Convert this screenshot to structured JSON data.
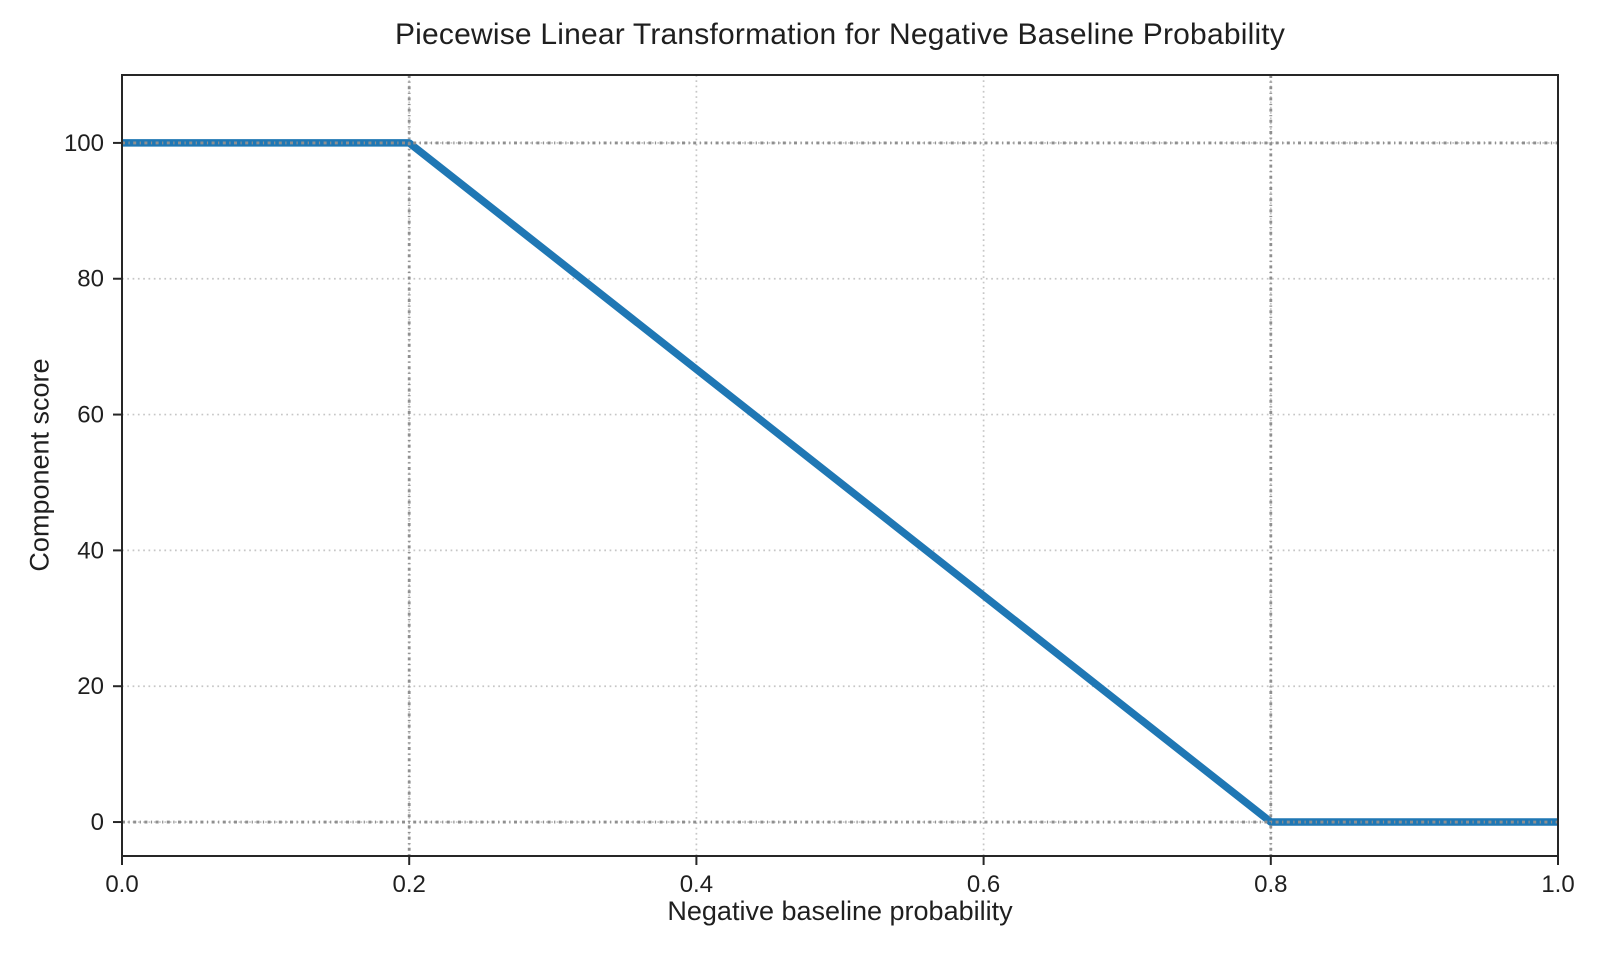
{
  "figure": {
    "background": "#ffffff"
  },
  "chart_data": {
    "type": "line",
    "title": "Piecewise Linear Transformation for Negative Baseline Probability",
    "xlabel": "Negative baseline probability",
    "ylabel": "Component score",
    "xlim": [
      0,
      1
    ],
    "ylim": [
      -5,
      110
    ],
    "xticks": {
      "values": [
        0.0,
        0.2,
        0.4,
        0.6,
        0.8,
        1.0
      ],
      "labels": [
        "0.0",
        "0.2",
        "0.4",
        "0.6",
        "0.8",
        "1.0"
      ]
    },
    "yticks": {
      "values": [
        0,
        20,
        40,
        60,
        80,
        100
      ],
      "labels": [
        "0",
        "20",
        "40",
        "60",
        "80",
        "100"
      ]
    },
    "grid": {
      "on": true,
      "style": "dotted",
      "color": "#c6c6c6"
    },
    "reference_lines": {
      "vertical_x": [
        0.2,
        0.8
      ],
      "horizontal_y": [
        0,
        100
      ],
      "color": "#8f8f8f",
      "style": "dotted"
    },
    "series": [
      {
        "name": "piecewise-linear-transform",
        "color": "#1f77b4",
        "linewidth": 7.5,
        "points": [
          [
            0.0,
            100
          ],
          [
            0.2,
            100
          ],
          [
            0.8,
            0
          ],
          [
            1.0,
            0
          ]
        ]
      }
    ],
    "legend": null,
    "spine_color": "#262626",
    "tick_color": "#262626",
    "text_color": "#1f1f1f"
  }
}
